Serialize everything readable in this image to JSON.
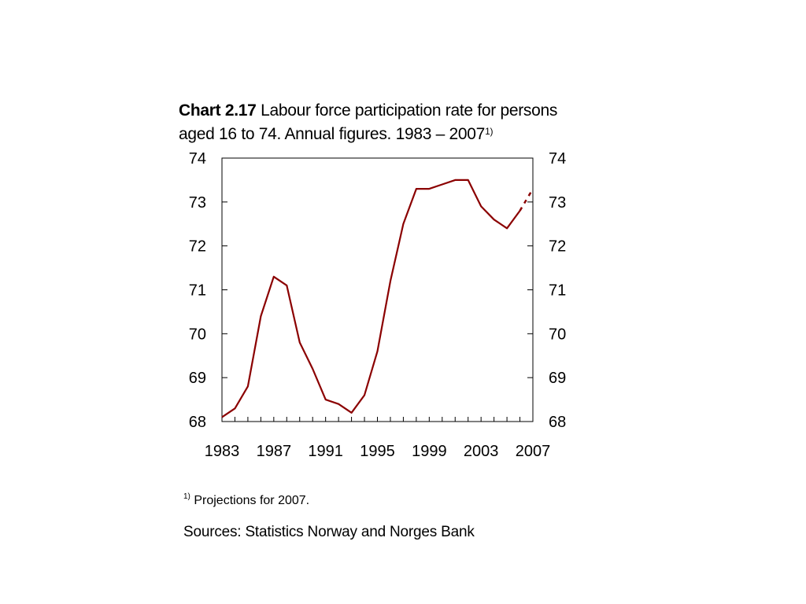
{
  "title": {
    "prefix": "Chart 2.17",
    "line1": " Labour force participation rate for persons",
    "line2": "aged 16 to 74. Annual figures. 1983 – 2007",
    "sup": "1)"
  },
  "chart_data": {
    "type": "line",
    "x": [
      1983,
      1984,
      1985,
      1986,
      1987,
      1988,
      1989,
      1990,
      1991,
      1992,
      1993,
      1994,
      1995,
      1996,
      1997,
      1998,
      1999,
      2000,
      2001,
      2002,
      2003,
      2004,
      2005,
      2006,
      2007
    ],
    "series": [
      {
        "values": [
          68.1,
          68.3,
          68.8,
          70.4,
          71.3,
          71.1,
          69.8,
          69.2,
          68.5,
          68.4,
          68.2,
          68.6,
          69.6,
          71.2,
          72.5,
          73.3,
          73.3,
          73.4,
          73.5,
          73.5,
          72.9,
          72.6,
          72.4,
          72.8,
          73.3
        ],
        "projection_from": 2006,
        "color": "#8B0000"
      }
    ],
    "xlim": [
      1983,
      2007
    ],
    "ylim": [
      68,
      74
    ],
    "yticks": [
      68,
      69,
      70,
      71,
      72,
      73,
      74
    ],
    "xticks": [
      1983,
      1987,
      1991,
      1995,
      1999,
      2003,
      2007
    ],
    "xlabel": "",
    "ylabel": "",
    "grid": false,
    "axes": "left-and-right"
  },
  "footnote": {
    "sup": "1)",
    "text": " Projections for 2007."
  },
  "sources": "Sources: Statistics Norway and Norges Bank"
}
